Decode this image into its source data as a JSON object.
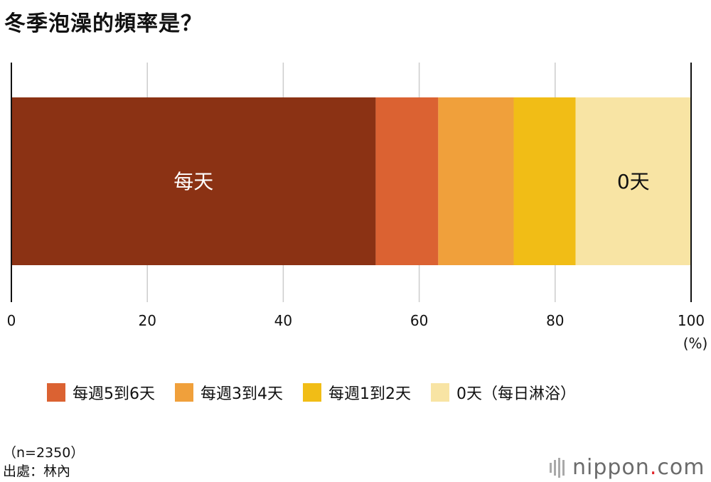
{
  "chart_data": {
    "type": "bar",
    "orientation": "horizontal",
    "stacked": true,
    "title": "冬季泡澡的頻率是？",
    "xlim": [
      0,
      100
    ],
    "xticks": [
      0,
      20,
      40,
      60,
      80,
      100
    ],
    "unit_label": "(%)",
    "grid": true,
    "legend_position": "bottom",
    "series": [
      {
        "name": "每天",
        "value": 53.6,
        "color": "#8b3214",
        "label": "每天",
        "label_color": "#ffffff",
        "legend": false
      },
      {
        "name": "每週5到6天",
        "value": 9.2,
        "color": "#db6232",
        "label": "",
        "legend": true
      },
      {
        "name": "每週3到4天",
        "value": 11.1,
        "color": "#f0a03b",
        "label": "",
        "legend": true
      },
      {
        "name": "每週1到2天",
        "value": 9.1,
        "color": "#f1bd16",
        "label": "",
        "legend": true
      },
      {
        "name": "0天（每日淋浴）",
        "value": 17.0,
        "color": "#f8e4a4",
        "label": "0天",
        "label_color": "#111111",
        "legend": true
      }
    ]
  },
  "footer": {
    "sample": "（n=2350）",
    "source": "出處：林內"
  },
  "brand": {
    "name": "nippon",
    "dot": ".",
    "tld": "com"
  }
}
